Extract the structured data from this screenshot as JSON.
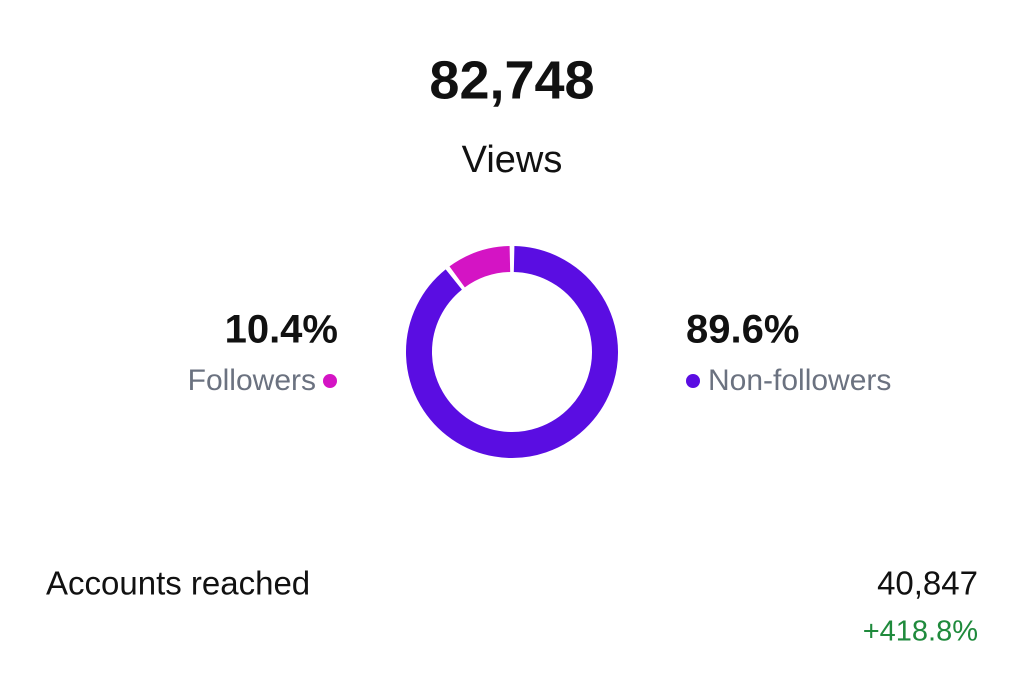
{
  "header": {
    "total": "82,748",
    "label": "Views"
  },
  "chart_data": {
    "type": "pie",
    "donut": true,
    "categories": [
      "Followers",
      "Non-followers"
    ],
    "values": [
      10.4,
      89.6
    ],
    "value_labels": [
      "10.4%",
      "89.6%"
    ],
    "colors": [
      "#d414c4",
      "#5a0de2"
    ]
  },
  "footer": {
    "label": "Accounts reached",
    "value": "40,847",
    "change": "+418.8%"
  }
}
